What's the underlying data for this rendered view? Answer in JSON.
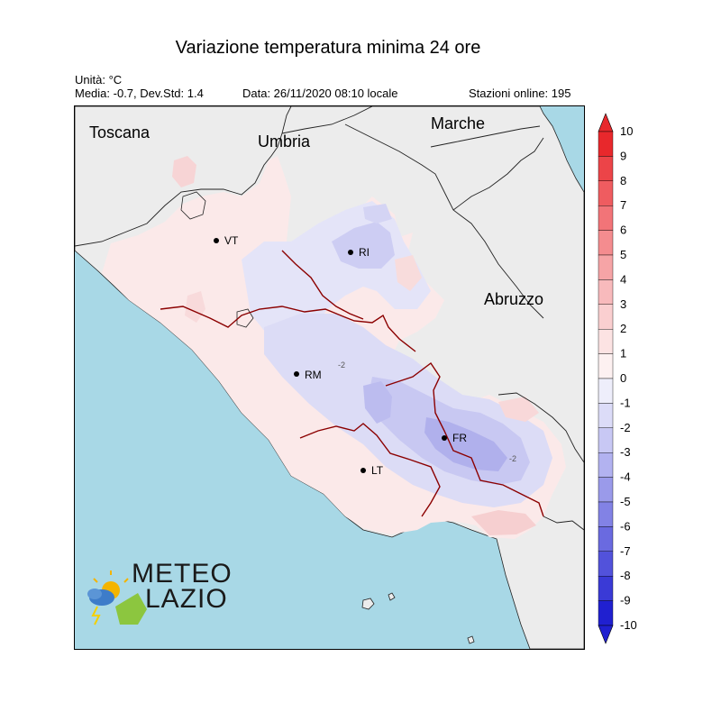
{
  "header": {
    "title": "Variazione temperatura minima 24 ore",
    "unit": "Unità: °C",
    "stats": "Media: -0.7, Dev.Std: 1.4",
    "date": "Data: 26/11/2020 08:10 locale",
    "stations": "Stazioni online: 195"
  },
  "map": {
    "regions": {
      "toscana": "Toscana",
      "umbria": "Umbria",
      "marche": "Marche",
      "abruzzo": "Abruzzo"
    },
    "cities": [
      {
        "code": "VT"
      },
      {
        "code": "RI"
      },
      {
        "code": "RM"
      },
      {
        "code": "FR"
      },
      {
        "code": "LT"
      }
    ],
    "contour_labels": [
      "-2",
      "-2"
    ],
    "colors": {
      "sea": "#a8d8e6",
      "land_outside": "#ececec",
      "border": "#8b0000"
    }
  },
  "logo": {
    "line1": "METEO",
    "line2": "LAZIO"
  },
  "colorbar": {
    "ticks": [
      "10",
      "9",
      "8",
      "7",
      "6",
      "5",
      "4",
      "3",
      "2",
      "1",
      "0",
      "-1",
      "-2",
      "-3",
      "-4",
      "-5",
      "-6",
      "-7",
      "-8",
      "-9",
      "-10"
    ],
    "colors": [
      "#e8282c",
      "#ec4448",
      "#ef5c60",
      "#f27478",
      "#f48c8f",
      "#f6a4a6",
      "#f8babc",
      "#facfd0",
      "#fce3e3",
      "#fdf1f1",
      "#eeeefb",
      "#dcdcf8",
      "#c8c8f4",
      "#b2b2f0",
      "#9a9aea",
      "#8282e5",
      "#6a6ae0",
      "#5252db",
      "#3a3ad6",
      "#2020d0"
    ]
  }
}
